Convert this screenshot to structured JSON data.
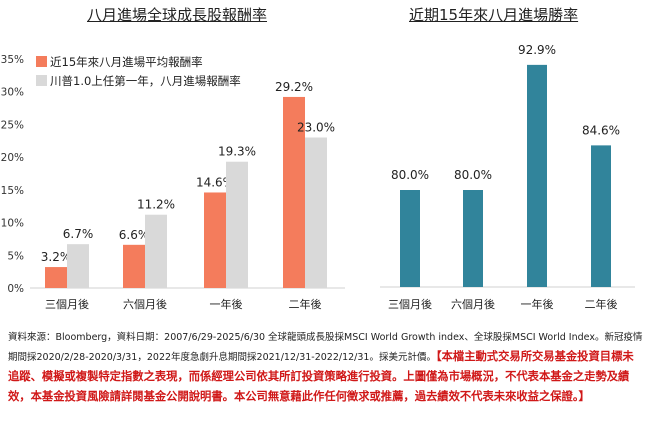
{
  "chart_data": [
    {
      "type": "bar",
      "title": "八月進場全球成長股報酬率",
      "categories": [
        "三個月後",
        "六個月後",
        "一年後",
        "二年後"
      ],
      "series": [
        {
          "name": "近15年來八月進場平均報酬率",
          "values": [
            3.2,
            6.6,
            14.6,
            29.2
          ],
          "labels": [
            "3.2%",
            "6.6%",
            "14.6%",
            "29.2%"
          ],
          "color": "#F47C5C"
        },
        {
          "name": "川普1.0上任第一年，八月進場報酬率",
          "values": [
            6.7,
            11.2,
            19.3,
            23.0
          ],
          "labels": [
            "6.7%",
            "11.2%",
            "19.3%",
            "23.0%"
          ],
          "color": "#D9D9D9"
        }
      ],
      "ylim": [
        0,
        35
      ],
      "yticks": [
        "0%",
        "5%",
        "10%",
        "15%",
        "20%",
        "25%",
        "30%",
        "35%"
      ],
      "legend": "top-left"
    },
    {
      "type": "bar",
      "title": "近期15年來八月進場勝率",
      "categories": [
        "三個月後",
        "六個月後",
        "一年後",
        "二年後"
      ],
      "values": [
        80.0,
        80.0,
        92.9,
        84.6
      ],
      "labels": [
        "80.0%",
        "80.0%",
        "92.9%",
        "84.6%"
      ],
      "color": "#31849B",
      "ylim": [
        70,
        100
      ]
    }
  ],
  "notes": {
    "line1": "資料來源：Bloomberg，資料日期：2007/6/29-2025/6/30 全球龍頭成長股採MSCI World Growth index、全球股採MSCI World Index。新冠疫情期間採2020/2/28-2020/3/31，2022年度急劇升息期間採2021/12/31-2022/12/31。採美元計價。",
    "disclaimer": "【本檔主動式交易所交易基金投資目標未追蹤、模擬或複製特定指數之表現，而係經理公司依其所訂投資策略進行投資。上圖僅為市場概況，不代表本基金之走勢及績效，本基金投資風險請詳閱基金公開說明書。本公司無意藉此作任何徵求或推薦，過去績效不代表未來收益之保證。】"
  }
}
